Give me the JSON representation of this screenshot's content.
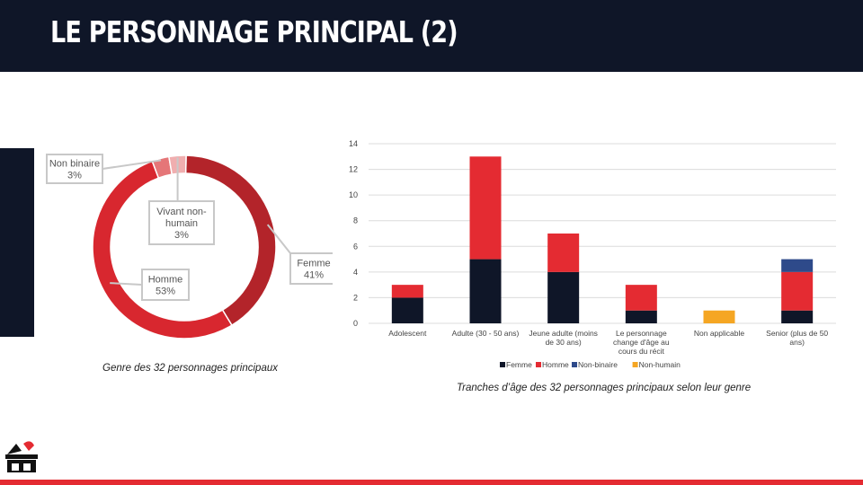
{
  "header": {
    "title": "LE PERSONNAGE PRINCIPAL (2)"
  },
  "captions": {
    "donut": "Genre des 32 personnages principaux",
    "bar": "Tranches d’âge des 32 personnages principaux selon leur genre"
  },
  "chart_data": [
    {
      "type": "pie",
      "variant": "donut",
      "title": "",
      "slices": [
        {
          "label": "Femme",
          "percent_label": "41%",
          "value": 41,
          "color": "#b3242a"
        },
        {
          "label": "Homme",
          "percent_label": "53%",
          "value": 53,
          "color": "#d8272f"
        },
        {
          "label": "Non binaire",
          "percent_label": "3%",
          "value": 3,
          "color": "#e57678"
        },
        {
          "label": "Vivant non-humain",
          "percent_label": "3%",
          "value": 3,
          "color": "#f0aeaf"
        }
      ]
    },
    {
      "type": "bar",
      "stacked": true,
      "title": "",
      "categories": [
        "Adolescent",
        "Adulte (30 - 50 ans)",
        "Jeune adulte (moins de 30 ans)",
        "Le personnage change d'âge au cours du récit",
        "Non applicable",
        "Senior (plus de 50 ans)"
      ],
      "category_lines": [
        [
          "Adolescent"
        ],
        [
          "Adulte (30 - 50 ans)"
        ],
        [
          "Jeune adulte (moins",
          "de 30 ans)"
        ],
        [
          "Le personnage",
          "change d'âge au",
          "cours du récit"
        ],
        [
          "Non applicable"
        ],
        [
          "Senior (plus de 50",
          "ans)"
        ]
      ],
      "series": [
        {
          "name": "Femme",
          "color": "#0f1628",
          "values": [
            2,
            5,
            4,
            1,
            0,
            1
          ]
        },
        {
          "name": "Homme",
          "color": "#e42b32",
          "values": [
            1,
            8,
            3,
            2,
            0,
            3
          ]
        },
        {
          "name": "Non-binaire",
          "color": "#2e4a8a",
          "values": [
            0,
            0,
            0,
            0,
            0,
            1
          ]
        },
        {
          "name": "Non-humain",
          "color": "#f5a623",
          "values": [
            0,
            0,
            0,
            0,
            1,
            0
          ]
        }
      ],
      "yticks": [
        "0",
        "2",
        "4",
        "6",
        "8",
        "10",
        "12",
        "14"
      ],
      "ylim": [
        0,
        14
      ],
      "grid": true,
      "legend_position": "bottom"
    }
  ],
  "logo": {
    "icon": "theater-mask-box-icon"
  }
}
